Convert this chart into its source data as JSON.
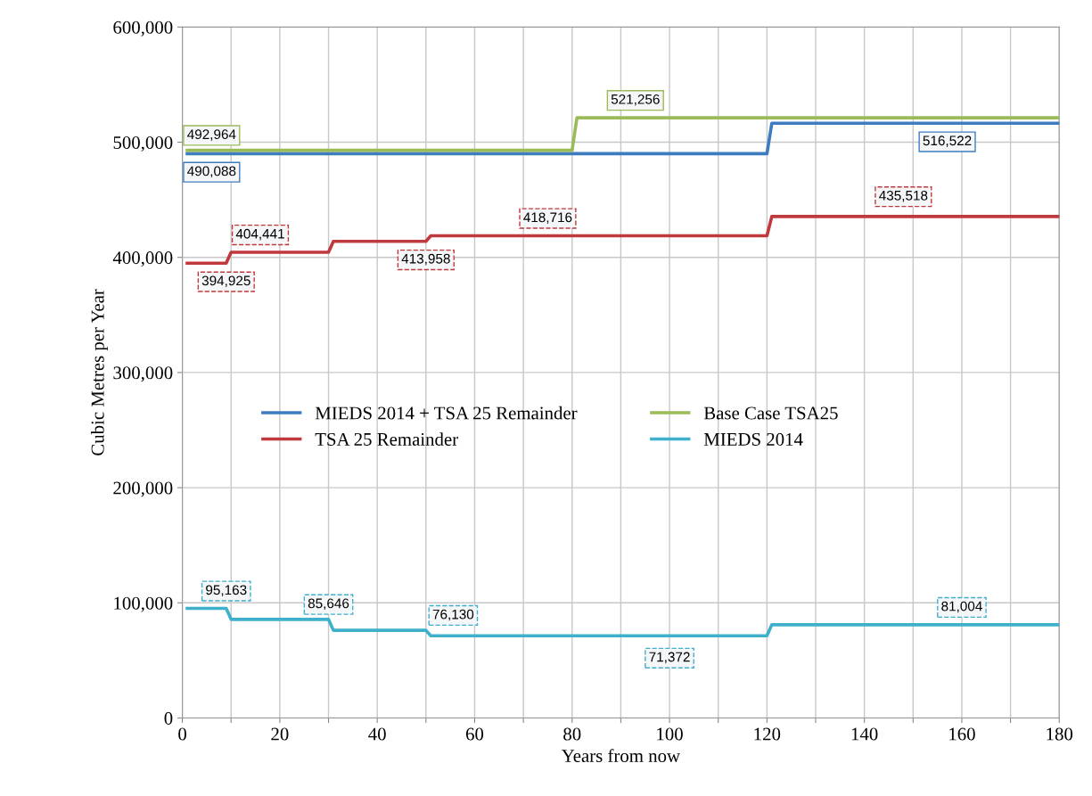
{
  "chart_data": {
    "type": "line",
    "xlabel": "Years from now",
    "ylabel": "Cubic Metres per Year",
    "xlim": [
      0,
      180
    ],
    "ylim": [
      0,
      600000
    ],
    "xticks": [
      0,
      {
        "value": 10,
        "label": null
      },
      20,
      {
        "value": 30,
        "label": null
      },
      40,
      {
        "value": 50,
        "label": null
      },
      60,
      {
        "value": 70,
        "label": null
      },
      80,
      {
        "value": 90,
        "label": null
      },
      100,
      {
        "value": 110,
        "label": null
      },
      120,
      {
        "value": 130,
        "label": null
      },
      140,
      {
        "value": 150,
        "label": null
      },
      160,
      {
        "value": 170,
        "label": null
      },
      180
    ],
    "yticks": [
      0,
      {
        "value": 100000,
        "label": "100,000"
      },
      {
        "value": 200000,
        "label": "200,000"
      },
      {
        "value": 300000,
        "label": "300,000"
      },
      {
        "value": 400000,
        "label": "400,000"
      },
      {
        "value": 500000,
        "label": "500,000"
      },
      {
        "value": 600000,
        "label": "600,000"
      }
    ],
    "grid": true,
    "legend": "center",
    "marker": "none",
    "line_style": "solid",
    "series": [
      {
        "name": "MIEDS 2014 + TSA 25 Remainder",
        "color": "#3e7cc0",
        "x": [
          1,
          6,
          120,
          121,
          157,
          180
        ],
        "values": [
          490088,
          490088,
          490088,
          516522,
          516522,
          516522
        ],
        "value_labels": [
          null,
          "490,088",
          null,
          null,
          "516,522",
          null
        ]
      },
      {
        "name": "Base Case TSA25",
        "color": "#9bbb59",
        "x": [
          1,
          6,
          80,
          81,
          93,
          180
        ],
        "values": [
          492964,
          492964,
          492964,
          521256,
          521256,
          521256
        ],
        "value_labels": [
          null,
          "492,964",
          null,
          null,
          "521,256",
          null
        ]
      },
      {
        "name": "TSA 25 Remainder",
        "color": "#c0393d",
        "x": [
          1,
          9,
          10,
          16,
          30,
          31,
          50,
          51,
          75,
          120,
          121,
          148,
          180
        ],
        "values": [
          394925,
          394925,
          404441,
          404441,
          404441,
          413958,
          413958,
          418716,
          418716,
          418716,
          435518,
          435518,
          435518
        ],
        "value_labels": [
          null,
          "394,925",
          null,
          "404,441",
          null,
          null,
          "413,958",
          null,
          "418,716",
          null,
          null,
          "435,518",
          null
        ]
      },
      {
        "name": "MIEDS 2014",
        "color": "#3fb0cc",
        "x": [
          1,
          9,
          10,
          30,
          31,
          50,
          51,
          100,
          120,
          121,
          160,
          180
        ],
        "values": [
          95163,
          95163,
          85646,
          85646,
          76130,
          76130,
          71372,
          71372,
          71372,
          81004,
          81004,
          81004
        ],
        "value_labels": [
          null,
          "95,163",
          null,
          "85,646",
          null,
          "76,130",
          null,
          "71,372",
          null,
          null,
          "81,004",
          null
        ]
      }
    ]
  }
}
